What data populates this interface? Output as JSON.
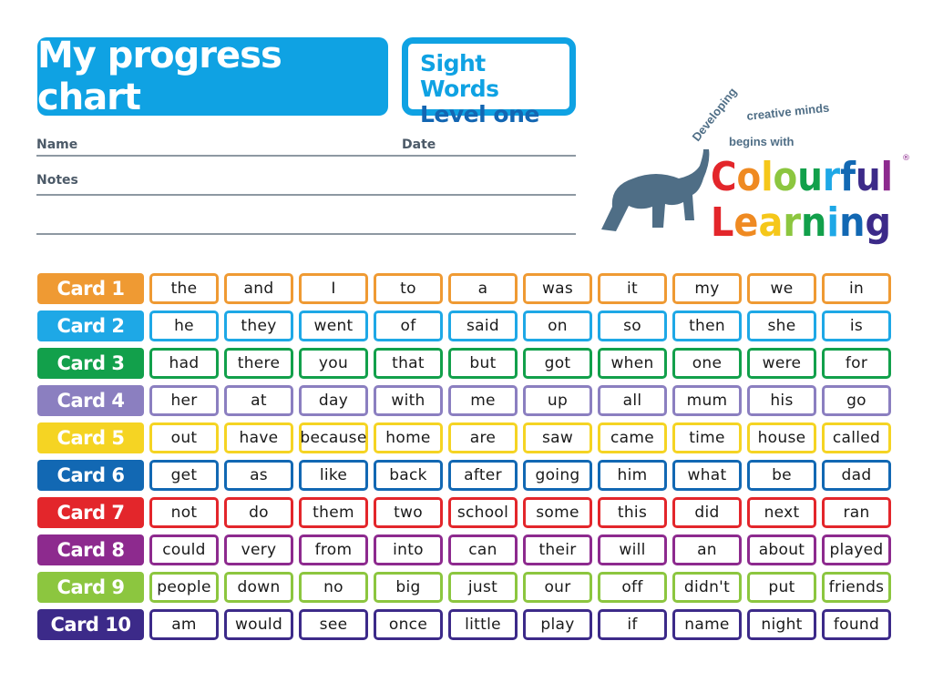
{
  "header": {
    "title": "My progress chart",
    "subtitle_line1": "Sight Words",
    "subtitle_line2": "Level one"
  },
  "form": {
    "name_label": "Name",
    "date_label": "Date",
    "notes_label": "Notes"
  },
  "logo": {
    "tagline_1": "Developing",
    "tagline_2": "creative minds",
    "tagline_3": "begins with",
    "brand_1": "Colourful",
    "brand_2": "Learning",
    "registered": "®",
    "brand_colors": [
      "#e3262b",
      "#ef8a22",
      "#f5c71a",
      "#8cc63f",
      "#12a04b",
      "#1ea8e6",
      "#1268b3",
      "#3c2a89",
      "#8d2a8e"
    ]
  },
  "cards": [
    {
      "label": "Card 1",
      "color": "#ef9a33",
      "words": [
        "the",
        "and",
        "I",
        "to",
        "a",
        "was",
        "it",
        "my",
        "we",
        "in"
      ]
    },
    {
      "label": "Card 2",
      "color": "#1ea8e6",
      "words": [
        "he",
        "they",
        "went",
        "of",
        "said",
        "on",
        "so",
        "then",
        "she",
        "is"
      ]
    },
    {
      "label": "Card 3",
      "color": "#12a04b",
      "words": [
        "had",
        "there",
        "you",
        "that",
        "but",
        "got",
        "when",
        "one",
        "were",
        "for"
      ]
    },
    {
      "label": "Card 4",
      "color": "#8b7fc0",
      "words": [
        "her",
        "at",
        "day",
        "with",
        "me",
        "up",
        "all",
        "mum",
        "his",
        "go"
      ]
    },
    {
      "label": "Card 5",
      "color": "#f5d423",
      "words": [
        "out",
        "have",
        "because",
        "home",
        "are",
        "saw",
        "came",
        "time",
        "house",
        "called"
      ]
    },
    {
      "label": "Card 6",
      "color": "#1268b3",
      "words": [
        "get",
        "as",
        "like",
        "back",
        "after",
        "going",
        "him",
        "what",
        "be",
        "dad"
      ]
    },
    {
      "label": "Card 7",
      "color": "#e3262b",
      "words": [
        "not",
        "do",
        "them",
        "two",
        "school",
        "some",
        "this",
        "did",
        "next",
        "ran"
      ]
    },
    {
      "label": "Card 8",
      "color": "#8d2a8e",
      "words": [
        "could",
        "very",
        "from",
        "into",
        "can",
        "their",
        "will",
        "an",
        "about",
        "played"
      ]
    },
    {
      "label": "Card 9",
      "color": "#8cc63f",
      "words": [
        "people",
        "down",
        "no",
        "big",
        "just",
        "our",
        "off",
        "didn't",
        "put",
        "friends"
      ]
    },
    {
      "label": "Card 10",
      "color": "#3c2a89",
      "words": [
        "am",
        "would",
        "see",
        "once",
        "little",
        "play",
        "if",
        "name",
        "night",
        "found"
      ]
    }
  ]
}
